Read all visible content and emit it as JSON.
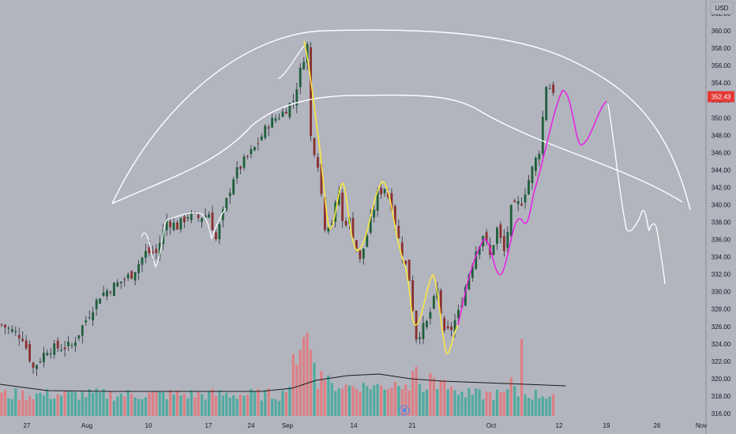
{
  "chart_data": {
    "type": "candlestick",
    "currency": "USD",
    "last_price": "352.43",
    "colors": {
      "background": "#b2b5be",
      "up": "#26a69a",
      "down": "#ef5350",
      "candle_body_up": "#1e5e3a",
      "candle_body_down": "#8b2f2f",
      "volume_up": "#3fa89a",
      "volume_down": "#e4767a",
      "volume_ma": "#1a1a1a",
      "price_badge": "#e53935",
      "annotation_white": "#ffffff",
      "annotation_yellow": "#ffeb3b",
      "annotation_magenta": "#e91ee3"
    },
    "y_axis": {
      "ticks": [
        "316.00",
        "318.00",
        "320.00",
        "322.00",
        "324.00",
        "326.00",
        "328.00",
        "330.00",
        "332.00",
        "334.00",
        "336.00",
        "338.00",
        "340.00",
        "342.00",
        "344.00",
        "346.00",
        "348.00",
        "350.00",
        "352.00",
        "354.00",
        "356.00",
        "358.00",
        "360.00",
        "362.00"
      ],
      "range": [
        315.1,
        363.0
      ]
    },
    "x_axis": {
      "ticks": [
        "27",
        "Aug",
        "10",
        "17",
        "24",
        "Sep",
        "14",
        "21",
        "Oct",
        "12",
        "19",
        "26",
        "Nov"
      ]
    },
    "closes_anchor": [
      [
        0,
        326.2
      ],
      [
        6,
        324.8
      ],
      [
        9,
        321.2
      ],
      [
        13,
        323.4
      ],
      [
        17,
        323.6
      ],
      [
        20,
        323.8
      ],
      [
        25,
        327.5
      ],
      [
        28,
        329.6
      ],
      [
        31,
        330.4
      ],
      [
        37,
        332.0
      ],
      [
        41,
        334.5
      ],
      [
        44,
        334.4
      ],
      [
        47,
        338.2
      ],
      [
        50,
        337.5
      ],
      [
        53,
        338.8
      ],
      [
        56,
        338.5
      ],
      [
        59,
        339.0
      ],
      [
        61,
        336.0
      ],
      [
        63,
        339.0
      ],
      [
        66,
        343.2
      ],
      [
        69,
        345.0
      ],
      [
        72,
        346.5
      ],
      [
        76,
        349.3
      ],
      [
        80,
        350.6
      ],
      [
        83,
        352.0
      ],
      [
        86,
        357.0
      ],
      [
        87,
        358.3
      ],
      [
        88,
        347.8
      ],
      [
        90,
        344.8
      ],
      [
        92,
        337.6
      ],
      [
        94,
        338.1
      ],
      [
        96,
        341.5
      ],
      [
        97,
        338.0
      ],
      [
        99,
        338.2
      ],
      [
        102,
        333.5
      ],
      [
        105,
        338.1
      ],
      [
        107,
        341.2
      ],
      [
        109,
        342.0
      ],
      [
        111,
        340.0
      ],
      [
        113,
        336.0
      ],
      [
        116,
        331.5
      ],
      [
        118,
        324.8
      ],
      [
        121,
        326.4
      ],
      [
        124,
        330.2
      ],
      [
        126,
        325.0
      ],
      [
        128,
        325.8
      ],
      [
        130,
        327.5
      ],
      [
        133,
        332.1
      ],
      [
        135,
        334.8
      ],
      [
        137,
        336.6
      ],
      [
        139,
        334.1
      ],
      [
        141,
        337.2
      ],
      [
        143,
        334.6
      ],
      [
        145,
        339.4
      ],
      [
        148,
        340.4
      ],
      [
        151,
        344.1
      ],
      [
        153,
        346.3
      ],
      [
        155,
        353.8
      ],
      [
        157,
        353.2
      ]
    ],
    "volume": {
      "spikes": {
        "83": "#e4767a",
        "84": "#e4767a",
        "85": "#e4767a",
        "86": "#e4767a",
        "87": "#e4767a",
        "88": "#e4767a",
        "89": "#3fa89a",
        "91": "#e4767a",
        "93": "#3fa89a",
        "112": "#e4767a",
        "113": "#3fa89a",
        "117": "#e4767a",
        "118": "#e4767a",
        "119": "#3fa89a",
        "122": "#e4767a",
        "123": "#e4767a",
        "126": "#e4767a",
        "127": "#3fa89a",
        "145": "#e4767a",
        "146": "#3fa89a",
        "148": "#e4767a"
      },
      "spike_heights": {
        "83": 0.58,
        "84": 0.48,
        "85": 0.62,
        "86": 0.74,
        "87": 0.78,
        "88": 0.62,
        "89": 0.5,
        "91": 0.42,
        "93": 0.38,
        "112": 0.32,
        "113": 0.28,
        "117": 0.42,
        "118": 0.46,
        "119": 0.3,
        "122": 0.4,
        "123": 0.36,
        "126": 0.34,
        "127": 0.25,
        "145": 0.36,
        "146": 0.28,
        "148": 0.72
      }
    }
  }
}
